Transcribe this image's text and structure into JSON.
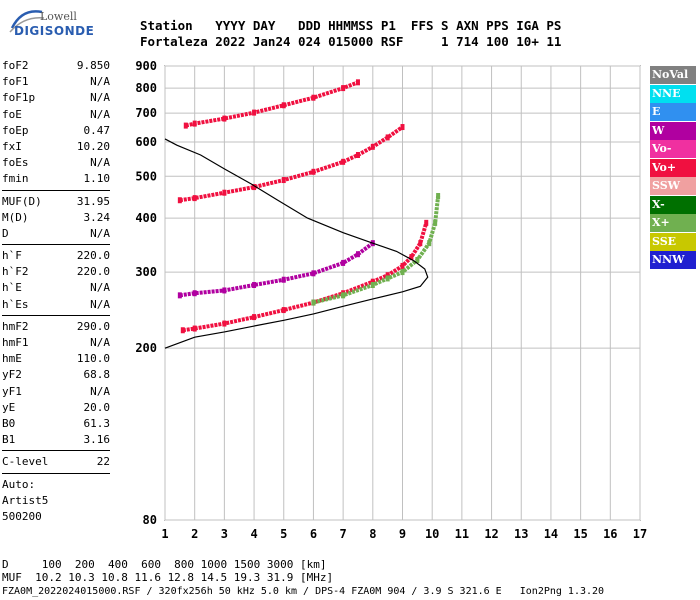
{
  "logo": {
    "line1": "Lowell",
    "line2": "DIGISONDE"
  },
  "header": {
    "line1": "Station   YYYY DAY   DDD HHMMSS P1  FFS S AXN PPS IGA PS",
    "line2": "Fortaleza 2022 Jan24 024 015000 RSF     1 714 100 10+ 11"
  },
  "params": {
    "group1": [
      {
        "label": "foF2",
        "value": "9.850"
      },
      {
        "label": "foF1",
        "value": "N/A"
      },
      {
        "label": "foF1p",
        "value": "N/A"
      },
      {
        "label": "foE",
        "value": "N/A"
      },
      {
        "label": "foEp",
        "value": "0.47"
      },
      {
        "label": "fxI",
        "value": "10.20"
      },
      {
        "label": "foEs",
        "value": "N/A"
      },
      {
        "label": "fmin",
        "value": "1.10"
      }
    ],
    "group2": [
      {
        "label": "MUF(D)",
        "value": "31.95"
      },
      {
        "label": "M(D)",
        "value": "3.24"
      },
      {
        "label": "D",
        "value": "N/A"
      }
    ],
    "group3": [
      {
        "label": "h`F",
        "value": "220.0"
      },
      {
        "label": "h`F2",
        "value": "220.0"
      },
      {
        "label": "h`E",
        "value": "N/A"
      },
      {
        "label": "h`Es",
        "value": "N/A"
      }
    ],
    "group4": [
      {
        "label": "hmF2",
        "value": "290.0"
      },
      {
        "label": "hmF1",
        "value": "N/A"
      },
      {
        "label": "hmE",
        "value": "110.0"
      },
      {
        "label": "yF2",
        "value": "68.8"
      },
      {
        "label": "yF1",
        "value": "N/A"
      },
      {
        "label": "yE",
        "value": "20.0"
      },
      {
        "label": "B0",
        "value": "61.3"
      },
      {
        "label": "B1",
        "value": "3.16"
      }
    ],
    "group5": [
      {
        "label": "C-level",
        "value": "22"
      }
    ],
    "auto": [
      "Auto:",
      "Artist5",
      "500200"
    ]
  },
  "legend": [
    {
      "label": "NoVal",
      "color": "#808080"
    },
    {
      "label": "NNE",
      "color": "#00e0f0"
    },
    {
      "label": "E",
      "color": "#3090f0"
    },
    {
      "label": "W",
      "color": "#b000a0"
    },
    {
      "label": "Vo-",
      "color": "#f030a0"
    },
    {
      "label": "Vo+",
      "color": "#f01040"
    },
    {
      "label": "SSW",
      "color": "#f0a0a0"
    },
    {
      "label": "X-",
      "color": "#007000"
    },
    {
      "label": "X+",
      "color": "#70b050"
    },
    {
      "label": "SSE",
      "color": "#c8c800"
    },
    {
      "label": "NNW",
      "color": "#2020d0"
    }
  ],
  "footer": {
    "line1": "D     100  200  400  600  800 1000 1500 3000 [km]",
    "line2": "MUF  10.2 10.3 10.8 11.6 12.8 14.5 19.3 31.9 [MHz]",
    "line3": "FZA0M_2022024015000.RSF / 320fx256h 50 kHz 5.0 km / DPS-4 FZA0M 904 / 3.9 S 321.6 E   Ion2Png 1.3.20"
  },
  "chart_data": {
    "type": "scatter",
    "xlim": [
      1,
      17
    ],
    "ylim": [
      80,
      900
    ],
    "y_log": true,
    "x_ticks": [
      1,
      2,
      3,
      4,
      5,
      6,
      7,
      8,
      9,
      10,
      11,
      12,
      13,
      14,
      15,
      16,
      17
    ],
    "y_ticks": [
      80,
      200,
      300,
      400,
      500,
      600,
      700,
      800,
      900
    ],
    "grid": true,
    "traces": [
      {
        "name": "O-trace",
        "color": "#f01040",
        "x": [
          1.6,
          2,
          3,
          4,
          5,
          6,
          7,
          8,
          8.5,
          9,
          9.3,
          9.6,
          9.8
        ],
        "y": [
          220,
          222,
          228,
          236,
          245,
          255,
          268,
          285,
          295,
          310,
          325,
          350,
          390
        ]
      },
      {
        "name": "X-trace",
        "color": "#70b050",
        "x": [
          6,
          7,
          8,
          8.5,
          9,
          9.5,
          9.9,
          10.1,
          10.2
        ],
        "y": [
          255,
          265,
          280,
          290,
          300,
          320,
          350,
          390,
          450
        ]
      },
      {
        "name": "2nd hop",
        "color": "#f01040",
        "x": [
          1.5,
          2,
          3,
          4,
          5,
          6,
          7,
          7.5,
          8,
          8.5,
          9
        ],
        "y": [
          440,
          445,
          458,
          472,
          490,
          512,
          540,
          560,
          585,
          615,
          650
        ]
      },
      {
        "name": "3rd hop",
        "color": "#f01040",
        "x": [
          1.7,
          2,
          3,
          4,
          5,
          6,
          7,
          7.5
        ],
        "y": [
          655,
          662,
          680,
          702,
          730,
          760,
          800,
          825
        ]
      },
      {
        "name": "W-spread",
        "color": "#b000a0",
        "x": [
          1.5,
          2,
          3,
          4,
          5,
          6,
          7,
          7.5,
          8
        ],
        "y": [
          265,
          268,
          272,
          280,
          288,
          298,
          315,
          330,
          350
        ]
      }
    ],
    "profile_line": {
      "x": [
        1,
        2,
        3,
        4,
        5,
        6,
        7,
        8,
        9,
        9.6,
        9.85,
        9.75,
        9.4,
        8.8,
        8.0,
        7.0,
        5.8,
        4.8,
        3.9,
        3.0,
        2.2,
        1.4,
        1.0
      ],
      "y": [
        200,
        212,
        218,
        225,
        232,
        240,
        250,
        260,
        270,
        278,
        292,
        305,
        318,
        335,
        350,
        370,
        400,
        440,
        480,
        520,
        560,
        590,
        610
      ]
    }
  }
}
